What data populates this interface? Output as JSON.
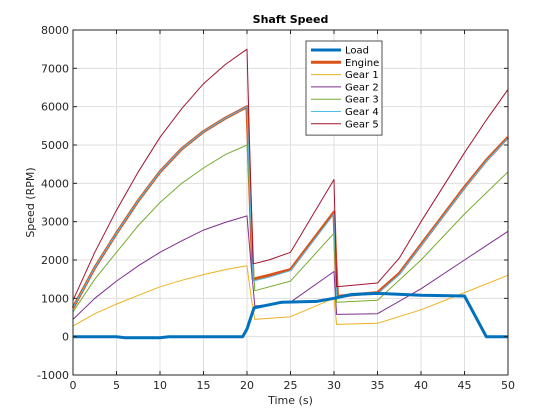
{
  "chart_data": {
    "type": "line",
    "title": "Shaft Speed",
    "xlabel": "Time (s)",
    "ylabel": "Speed (RPM)",
    "xlim": [
      0,
      50
    ],
    "ylim": [
      -1000,
      8000
    ],
    "xticks": [
      0,
      5,
      10,
      15,
      20,
      25,
      30,
      35,
      40,
      45,
      50
    ],
    "yticks": [
      -1000,
      0,
      1000,
      2000,
      3000,
      4000,
      5000,
      6000,
      7000,
      8000
    ],
    "xtick_labels": [
      "0",
      "5",
      "10",
      "15",
      "20",
      "25",
      "30",
      "35",
      "40",
      "45",
      "50"
    ],
    "ytick_labels": [
      "-1000",
      "0",
      "1000",
      "2000",
      "3000",
      "4000",
      "5000",
      "6000",
      "7000",
      "8000"
    ],
    "grid": true,
    "legend_position": "top-right",
    "series": [
      {
        "name": "Load",
        "color": "#0072BD",
        "width": 3,
        "points": [
          [
            0,
            0
          ],
          [
            5,
            0
          ],
          [
            6,
            -30
          ],
          [
            10,
            -30
          ],
          [
            11,
            0
          ],
          [
            19.5,
            0
          ],
          [
            20,
            200
          ],
          [
            20.8,
            750
          ],
          [
            24,
            900
          ],
          [
            28,
            920
          ],
          [
            30,
            1000
          ],
          [
            32,
            1100
          ],
          [
            35,
            1130
          ],
          [
            40,
            1080
          ],
          [
            45,
            1060
          ],
          [
            47.5,
            0
          ],
          [
            50,
            0
          ]
        ]
      },
      {
        "name": "Engine",
        "color": "#D95319",
        "width": 3,
        "points": [
          [
            0,
            750
          ],
          [
            2.5,
            1800
          ],
          [
            5,
            2700
          ],
          [
            7.5,
            3550
          ],
          [
            10,
            4300
          ],
          [
            12.5,
            4900
          ],
          [
            15,
            5350
          ],
          [
            17.5,
            5700
          ],
          [
            20,
            6000
          ],
          [
            20.3,
            4000
          ],
          [
            20.7,
            1500
          ],
          [
            22.5,
            1600
          ],
          [
            25,
            1750
          ],
          [
            30,
            3250
          ],
          [
            30.2,
            2000
          ],
          [
            30.4,
            1050
          ],
          [
            32.5,
            1100
          ],
          [
            35,
            1150
          ],
          [
            37.5,
            1650
          ],
          [
            40,
            2400
          ],
          [
            42.5,
            3150
          ],
          [
            45,
            3900
          ],
          [
            47.5,
            4600
          ],
          [
            50,
            5200
          ]
        ]
      },
      {
        "name": "Gear 1",
        "color": "#EDB120",
        "width": 1,
        "points": [
          [
            0,
            280
          ],
          [
            2.5,
            600
          ],
          [
            5,
            850
          ],
          [
            7.5,
            1080
          ],
          [
            10,
            1300
          ],
          [
            12.5,
            1470
          ],
          [
            15,
            1620
          ],
          [
            17.5,
            1750
          ],
          [
            20,
            1850
          ],
          [
            20.5,
            1000
          ],
          [
            20.9,
            450
          ],
          [
            25,
            520
          ],
          [
            30,
            1000
          ],
          [
            30.3,
            320
          ],
          [
            35,
            350
          ],
          [
            40,
            700
          ],
          [
            45,
            1150
          ],
          [
            50,
            1600
          ]
        ]
      },
      {
        "name": "Gear 2",
        "color": "#7E2F8E",
        "width": 1,
        "points": [
          [
            0,
            450
          ],
          [
            2.5,
            1000
          ],
          [
            5,
            1450
          ],
          [
            7.5,
            1850
          ],
          [
            10,
            2200
          ],
          [
            12.5,
            2500
          ],
          [
            15,
            2780
          ],
          [
            17.5,
            2980
          ],
          [
            20,
            3150
          ],
          [
            20.5,
            1800
          ],
          [
            20.9,
            800
          ],
          [
            25,
            900
          ],
          [
            30,
            1700
          ],
          [
            30.3,
            580
          ],
          [
            35,
            600
          ],
          [
            40,
            1250
          ],
          [
            45,
            2000
          ],
          [
            50,
            2750
          ]
        ]
      },
      {
        "name": "Gear 3",
        "color": "#77AC30",
        "width": 1,
        "points": [
          [
            0,
            650
          ],
          [
            2.5,
            1500
          ],
          [
            5,
            2200
          ],
          [
            7.5,
            2900
          ],
          [
            10,
            3500
          ],
          [
            12.5,
            4000
          ],
          [
            15,
            4400
          ],
          [
            17.5,
            4750
          ],
          [
            20,
            5000
          ],
          [
            20.5,
            2800
          ],
          [
            20.9,
            1200
          ],
          [
            25,
            1450
          ],
          [
            30,
            2700
          ],
          [
            30.3,
            900
          ],
          [
            35,
            950
          ],
          [
            40,
            2000
          ],
          [
            45,
            3200
          ],
          [
            50,
            4300
          ]
        ]
      },
      {
        "name": "Gear 4",
        "color": "#4DBEEE",
        "width": 1,
        "points": [
          [
            0,
            750
          ],
          [
            2.5,
            1800
          ],
          [
            5,
            2700
          ],
          [
            7.5,
            3550
          ],
          [
            10,
            4300
          ],
          [
            12.5,
            4900
          ],
          [
            15,
            5350
          ],
          [
            17.5,
            5700
          ],
          [
            20,
            6000
          ],
          [
            20.3,
            4000
          ],
          [
            20.7,
            1450
          ],
          [
            22.5,
            1550
          ],
          [
            25,
            1720
          ],
          [
            30,
            3200
          ],
          [
            30.3,
            1050
          ],
          [
            35,
            1120
          ],
          [
            37.5,
            1620
          ],
          [
            40,
            2380
          ],
          [
            42.5,
            3130
          ],
          [
            45,
            3880
          ],
          [
            47.5,
            4580
          ],
          [
            50,
            5180
          ]
        ]
      },
      {
        "name": "Gear 5",
        "color": "#A2142F",
        "width": 1,
        "points": [
          [
            0,
            950
          ],
          [
            2.5,
            2200
          ],
          [
            5,
            3300
          ],
          [
            7.5,
            4300
          ],
          [
            10,
            5200
          ],
          [
            12.5,
            5950
          ],
          [
            15,
            6600
          ],
          [
            17.5,
            7100
          ],
          [
            20,
            7500
          ],
          [
            20.3,
            5000
          ],
          [
            20.7,
            1900
          ],
          [
            22.5,
            2000
          ],
          [
            25,
            2200
          ],
          [
            30,
            4100
          ],
          [
            30.3,
            1300
          ],
          [
            35,
            1400
          ],
          [
            37.5,
            2050
          ],
          [
            40,
            3000
          ],
          [
            42.5,
            3900
          ],
          [
            45,
            4800
          ],
          [
            47.5,
            5650
          ],
          [
            50,
            6450
          ]
        ]
      }
    ]
  }
}
